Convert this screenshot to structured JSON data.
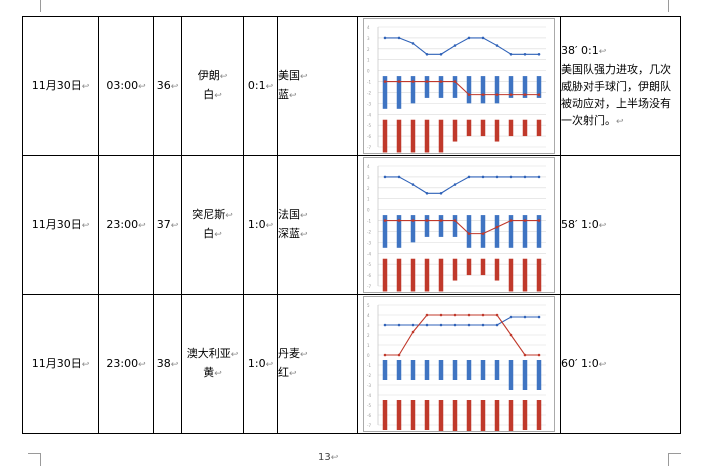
{
  "page": {
    "number": "13",
    "mark": "↩"
  },
  "rows": [
    {
      "date": "11月30日",
      "time": "03:00",
      "no": "36",
      "team_a": [
        "伊朗",
        "白"
      ],
      "score": "0:1",
      "team_b": [
        "美国",
        "蓝"
      ],
      "note": [
        "38′ 0:1",
        "美国队强力进攻，几次威胁对手球门，伊朗队被动应对，上半场没有一次射门。"
      ],
      "chart_data": {
        "type": "line+bar",
        "x": [
          1,
          2,
          3,
          4,
          5,
          6,
          7,
          8,
          9,
          10,
          11,
          12
        ],
        "series": [
          {
            "color": "#2f62b8",
            "kind": "line",
            "values": [
              3.0,
              3.0,
              2.5,
              1.5,
              1.5,
              2.3,
              3.0,
              3.0,
              2.3,
              1.5,
              1.5,
              1.5
            ]
          },
          {
            "color": "#c0392b",
            "kind": "line",
            "values": [
              -1.0,
              -1.0,
              -1.0,
              -1.0,
              -1.0,
              -1.0,
              -2.2,
              -2.2,
              -2.2,
              -2.2,
              -2.2,
              -2.2
            ]
          },
          {
            "color": "#3f74c2",
            "kind": "bar",
            "values": [
              -3.5,
              -3.5,
              -3,
              -2.5,
              -2.5,
              -2.5,
              -3,
              -3,
              -3,
              -2.5,
              -2.5,
              -2.5
            ]
          },
          {
            "color": "#c0392b",
            "kind": "bar",
            "values": [
              -1.5,
              -1.5,
              -1.5,
              -1.5,
              -1.5,
              -2.5,
              -3.0,
              -3.0,
              -2.5,
              -3.0,
              -3.0,
              -3.0
            ]
          }
        ],
        "ylim": [
          -7,
          4
        ]
      }
    },
    {
      "date": "11月30日",
      "time": "23:00",
      "no": "37",
      "team_a": [
        "突尼斯",
        "白"
      ],
      "score": "1:0",
      "team_b": [
        "法国",
        "深蓝"
      ],
      "note": [
        "58′ 1:0"
      ],
      "chart_data": {
        "type": "line+bar",
        "x": [
          1,
          2,
          3,
          4,
          5,
          6,
          7,
          8,
          9,
          10,
          11,
          12
        ],
        "series": [
          {
            "color": "#2f62b8",
            "kind": "line",
            "values": [
              3.0,
              3.0,
              2.3,
              1.5,
              1.5,
              2.3,
              3.0,
              3.0,
              3.0,
              3.0,
              3.0,
              3.0
            ]
          },
          {
            "color": "#c0392b",
            "kind": "line",
            "values": [
              -1.0,
              -1.0,
              -1.0,
              -1.0,
              -1.0,
              -1.0,
              -2.2,
              -2.2,
              -1.6,
              -1.0,
              -1.0,
              -1.0
            ]
          },
          {
            "color": "#3f74c2",
            "kind": "bar",
            "values": [
              -3.5,
              -3.5,
              -3,
              -2.5,
              -2.5,
              -2.5,
              -3.5,
              -3.5,
              -3.5,
              -3.5,
              -3.5,
              -3.5
            ]
          },
          {
            "color": "#c0392b",
            "kind": "bar",
            "values": [
              -1.5,
              -1.5,
              -1.5,
              -1.5,
              -1.5,
              -2.5,
              -3.0,
              -3.0,
              -2.5,
              -1.5,
              -1.5,
              -1.5
            ]
          }
        ],
        "ylim": [
          -7,
          4
        ]
      }
    },
    {
      "date": "11月30日",
      "time": "23:00",
      "no": "38",
      "team_a": [
        "澳大利亚",
        "黄"
      ],
      "score": "1:0",
      "team_b": [
        "丹麦",
        "红"
      ],
      "note": [
        "60′ 1:0"
      ],
      "chart_data": {
        "type": "line+bar",
        "x": [
          1,
          2,
          3,
          4,
          5,
          6,
          7,
          8,
          9,
          10,
          11,
          12
        ],
        "series": [
          {
            "color": "#2f62b8",
            "kind": "line",
            "values": [
              3.0,
              3.0,
              3.0,
              3.0,
              3.0,
              3.0,
              3.0,
              3.0,
              3.0,
              3.8,
              3.8,
              3.8
            ]
          },
          {
            "color": "#c0392b",
            "kind": "line",
            "values": [
              0.0,
              0.0,
              2.3,
              4.0,
              4.0,
              4.0,
              4.0,
              4.0,
              4.0,
              2.0,
              0.0,
              0.0
            ]
          },
          {
            "color": "#3f74c2",
            "kind": "bar",
            "values": [
              -2.5,
              -2.5,
              -2.5,
              -2.5,
              -2.5,
              -2.5,
              -2.5,
              -2.5,
              -2.5,
              -3.5,
              -3.5,
              -3.5
            ]
          },
          {
            "color": "#c0392b",
            "kind": "bar",
            "values": [
              -1.5,
              -1.5,
              -1.5,
              -1.5,
              -0.5,
              -0.5,
              -0.5,
              -0.5,
              -0.5,
              -1.0,
              -1.5,
              -1.5
            ]
          }
        ],
        "ylim": [
          -7,
          5
        ]
      }
    }
  ]
}
